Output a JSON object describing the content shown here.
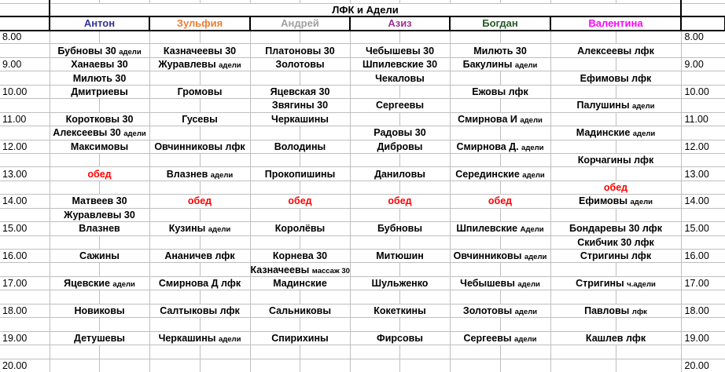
{
  "title": "ЛФК и Адели",
  "columns": [
    {
      "label": "Антон",
      "color": "#333399"
    },
    {
      "label": "Зульфия",
      "color": "#ED7D31"
    },
    {
      "label": "Андрей",
      "color": "#A0A0A0"
    },
    {
      "label": "Азиз",
      "color": "#993399"
    },
    {
      "label": "Богдан",
      "color": "#275927"
    },
    {
      "label": "Валентина",
      "color": "#FF00FF"
    }
  ],
  "lunch_label": "обед",
  "lunch_color": "#FF0000",
  "grid_color": "#BFBFBF",
  "rows": [
    {
      "time": "8.00",
      "cells": [
        "",
        "",
        "",
        "",
        "",
        ""
      ]
    },
    {
      "time": "",
      "cells": [
        {
          "main": "Бубновы 30",
          "small": "адели"
        },
        "Казначеевы 30",
        "Платоновы 30",
        "Чебышевы 30",
        "Милють 30",
        "Алексеевы лфк"
      ]
    },
    {
      "time": "9.00",
      "cells": [
        "Ханаевы 30",
        {
          "main": "Журавлевы",
          "small": "адели"
        },
        "Золотовы",
        "Шпилевские 30",
        {
          "main": "Бакулины",
          "small": "адели"
        },
        ""
      ]
    },
    {
      "time": "",
      "cells": [
        "Милють 30",
        "",
        "",
        "Чекаловы",
        "",
        "Ефимовы лфк"
      ]
    },
    {
      "time": "10.00",
      "cells": [
        "Дмитриевы",
        "Громовы",
        "Яцевская 30",
        "",
        "Ежовы лфк",
        ""
      ]
    },
    {
      "time": "",
      "cells": [
        "",
        "",
        "Звягины 30",
        "Сергеевы",
        "",
        {
          "main": "Палушины",
          "small": "адели"
        }
      ]
    },
    {
      "time": "11.00",
      "cells": [
        "Коротковы 30",
        "Гусевы",
        "Черкашины",
        "",
        {
          "main": "Смирнова И",
          "small": "адели"
        },
        ""
      ]
    },
    {
      "time": "",
      "cells": [
        {
          "main": "Алексеевы 30",
          "small": "адели"
        },
        "",
        "",
        "Радовы 30",
        "",
        {
          "main": "Мадинские",
          "small": "адели"
        }
      ]
    },
    {
      "time": "12.00",
      "cells": [
        "Максимовы",
        "Овчинниковы лфк",
        "Володины",
        "Дибровы",
        {
          "main": "Смирнова Д.",
          "small": "адели"
        },
        ""
      ]
    },
    {
      "time": "",
      "cells": [
        "",
        "",
        "",
        "",
        "",
        "Корчагины лфк"
      ]
    },
    {
      "time": "13.00",
      "cells": [
        {
          "main": "обед",
          "lunch": true
        },
        {
          "main": "Влазнев",
          "small": "адели"
        },
        "Прокопишины",
        "Даниловы",
        {
          "main": "Серединские",
          "small": "адели"
        },
        ""
      ]
    },
    {
      "time": "",
      "cells": [
        "",
        "",
        "",
        "",
        "",
        {
          "main": "обед",
          "lunch": true
        }
      ]
    },
    {
      "time": "14.00",
      "cells": [
        "Матвеев 30",
        {
          "main": "обед",
          "lunch": true
        },
        {
          "main": "обед",
          "lunch": true
        },
        {
          "main": "обед",
          "lunch": true
        },
        {
          "main": "обед",
          "lunch": true
        },
        {
          "main": "Ефимовы",
          "small": "адели"
        }
      ]
    },
    {
      "time": "",
      "cells": [
        "Журавлевы 30",
        "",
        "",
        "",
        "",
        ""
      ]
    },
    {
      "time": "15.00",
      "cells": [
        "Влазнев",
        {
          "main": "Кузины",
          "small": "адели"
        },
        "Королёвы",
        "Бубновы",
        {
          "main": "Шпилевские",
          "small": "Адели"
        },
        "Бондаревы 30 лфк"
      ]
    },
    {
      "time": "",
      "cells": [
        "",
        "",
        "",
        "",
        "",
        "Скибчик 30 лфк"
      ]
    },
    {
      "time": "16.00",
      "cells": [
        "Сажины",
        "Ананичев лфк",
        "Корнева 30",
        "Митюшин",
        {
          "main": "Овчинниковы",
          "small": "адели"
        },
        "Стригины лфк"
      ]
    },
    {
      "time": "",
      "cells": [
        "",
        "",
        {
          "main": "Казначеевы",
          "small": "массаж 30"
        },
        "",
        "",
        ""
      ]
    },
    {
      "time": "17.00",
      "cells": [
        {
          "main": "Яцевские",
          "small": "адели"
        },
        "Смирнова Д лфк",
        "Мадинские",
        "Шульженко",
        {
          "main": "Чебышевы",
          "small": "адели"
        },
        {
          "main": "Стригины",
          "small": "ч.адели"
        }
      ]
    },
    {
      "time": "",
      "cells": [
        "",
        "",
        "",
        "",
        "",
        ""
      ]
    },
    {
      "time": "18.00",
      "cells": [
        "Новиковы",
        "Салтыковы лфк",
        "Сальниковы",
        "Кокеткины",
        {
          "main": "Золотовы",
          "small": "адели"
        },
        {
          "main": "Павловы",
          "small": "лфк"
        }
      ]
    },
    {
      "time": "",
      "cells": [
        "",
        "",
        "",
        "",
        "",
        ""
      ]
    },
    {
      "time": "19.00",
      "cells": [
        "Детушевы",
        {
          "main": "Черкашины",
          "small": "адели"
        },
        "Спирихины",
        "Фирсовы",
        {
          "main": "Сергеевы",
          "small": "адели"
        },
        "Кашлев лфк"
      ]
    },
    {
      "time": "",
      "cells": [
        "",
        "",
        "",
        "",
        "",
        ""
      ]
    },
    {
      "time": "20.00",
      "cells": [
        "",
        "",
        "",
        "",
        "",
        ""
      ]
    }
  ]
}
